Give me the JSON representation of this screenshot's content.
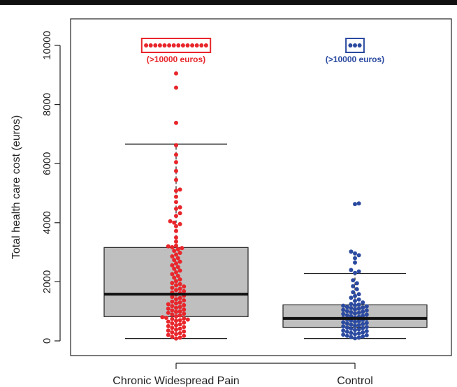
{
  "chart_data": {
    "type": "boxplot with beeswarm",
    "title": "",
    "xlabel": "",
    "ylabel": "Total health care cost (euros)",
    "ylim": [
      0,
      10000
    ],
    "yticks": [
      0,
      2000,
      4000,
      6000,
      8000,
      10000
    ],
    "grid": false,
    "categories": [
      "Chronic Widespread Pain",
      "Control"
    ],
    "colors": {
      "Chronic Widespread Pain": "#e8262b",
      "Control": "#2b4aa0",
      "box_fill": "#bfbfbf"
    },
    "overflow_label": "(>10000 euros)",
    "series": [
      {
        "category": "Chronic Widespread Pain",
        "box": {
          "lower_whisker": 80,
          "q1": 820,
          "median": 1580,
          "q3": 3160,
          "upper_whisker": 6660
        },
        "overflow_count": 14,
        "points": [
          9050,
          8570,
          7380,
          6620,
          6300,
          6050,
          5750,
          5450,
          5120,
          5080,
          4880,
          4700,
          4520,
          4470,
          4320,
          4230,
          4050,
          4000,
          3950,
          3880,
          3720,
          3500,
          3360,
          3220,
          3200,
          3170,
          3140,
          3100,
          3050,
          2980,
          2920,
          2860,
          2800,
          2740,
          2680,
          2620,
          2560,
          2500,
          2440,
          2380,
          2320,
          2260,
          2200,
          2140,
          2080,
          2020,
          1960,
          1920,
          1880,
          1840,
          1800,
          1760,
          1720,
          1680,
          1640,
          1610,
          1570,
          1530,
          1490,
          1450,
          1410,
          1370,
          1330,
          1300,
          1270,
          1240,
          1210,
          1180,
          1150,
          1120,
          1090,
          1060,
          1030,
          1000,
          980,
          950,
          920,
          890,
          860,
          830,
          800,
          780,
          760,
          740,
          720,
          700,
          680,
          650,
          620,
          590,
          560,
          530,
          500,
          470,
          440,
          410,
          380,
          350,
          320,
          290,
          260,
          230,
          200,
          170,
          140,
          110,
          80
        ]
      },
      {
        "category": "Control",
        "box": {
          "lower_whisker": 80,
          "q1": 460,
          "median": 760,
          "q3": 1220,
          "upper_whisker": 2280
        },
        "overflow_count": 3,
        "points": [
          4650,
          4630,
          3020,
          2960,
          2900,
          2800,
          2650,
          2400,
          2350,
          2300,
          2050,
          1950,
          1850,
          1750,
          1650,
          1580,
          1520,
          1460,
          1400,
          1350,
          1300,
          1250,
          1230,
          1210,
          1190,
          1170,
          1150,
          1130,
          1110,
          1090,
          1070,
          1050,
          1030,
          1010,
          990,
          970,
          950,
          930,
          910,
          890,
          870,
          850,
          830,
          810,
          790,
          770,
          750,
          730,
          710,
          690,
          670,
          650,
          630,
          610,
          590,
          570,
          550,
          530,
          510,
          490,
          470,
          450,
          430,
          410,
          390,
          370,
          350,
          330,
          310,
          290,
          270,
          250,
          230,
          210,
          190,
          170,
          150,
          130,
          110,
          90
        ]
      }
    ]
  }
}
